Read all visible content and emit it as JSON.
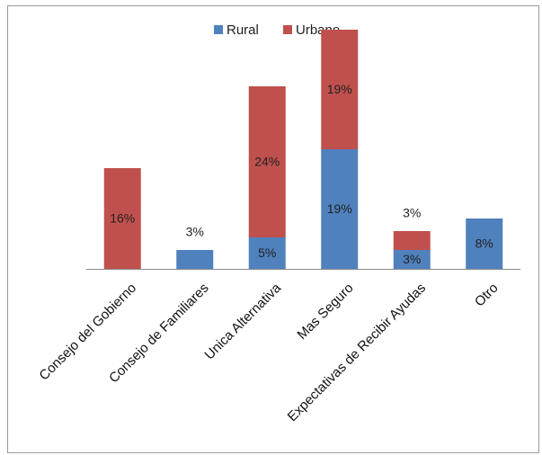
{
  "chart_data": {
    "type": "bar",
    "stacked": true,
    "categories": [
      "Consejo del Gobierno",
      "Consejo de Familiares",
      "Unica Alternativa",
      "Mas Seguro",
      "Expectativas de Recibir Ayudas",
      "Otro"
    ],
    "series": [
      {
        "name": "Rural",
        "color": "#4f81bd",
        "values": [
          0,
          3,
          5,
          19,
          3,
          8
        ],
        "labels": [
          "",
          "3%",
          "5%",
          "19%",
          "3%",
          "8%"
        ]
      },
      {
        "name": "Urbano",
        "color": "#c0504d",
        "values": [
          16,
          0,
          24,
          19,
          3,
          0
        ],
        "labels": [
          "16%",
          "",
          "24%",
          "19%",
          "3%",
          ""
        ]
      }
    ],
    "ylim": [
      0,
      40
    ],
    "grid": false,
    "legend_position": "top-center",
    "xlabel": "",
    "ylabel": ""
  }
}
